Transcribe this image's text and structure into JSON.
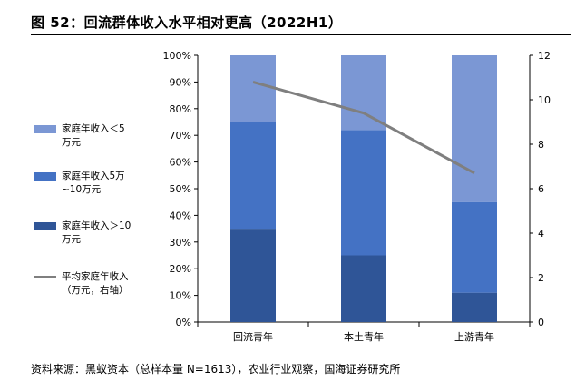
{
  "title": "图 52：回流群体收入水平相对更高（2022H1）",
  "source": "资料来源：黑蚁资本（总样本量 N=1613），农业行业观察，国海证券研究所",
  "chart_data": {
    "type": "bar",
    "stacked": true,
    "categories": [
      "回流青年",
      "本土青年",
      "上游青年"
    ],
    "series": [
      {
        "name": "家庭年收入＞10万元",
        "values": [
          35,
          25,
          11
        ],
        "color": "#2f5597"
      },
      {
        "name": "家庭年收入5万~10万元",
        "values": [
          40,
          47,
          34
        ],
        "color": "#4472c4"
      },
      {
        "name": "家庭年收入＜5万元",
        "values": [
          25,
          28,
          55
        ],
        "color": "#7b97d4"
      }
    ],
    "line_series": {
      "name": "平均家庭年收入（万元，右轴）",
      "values": [
        10.8,
        9.4,
        6.7
      ],
      "color": "#7f7f7f",
      "axis": "right"
    },
    "y_left": {
      "min": 0,
      "max": 100,
      "step": 10,
      "ticks": [
        "0%",
        "10%",
        "20%",
        "30%",
        "40%",
        "50%",
        "60%",
        "70%",
        "80%",
        "90%",
        "100%"
      ]
    },
    "y_right": {
      "min": 0,
      "max": 12,
      "step": 2,
      "ticks": [
        "0",
        "2",
        "4",
        "6",
        "8",
        "10",
        "12"
      ]
    },
    "legend": [
      {
        "label": "家庭年收入＜5\n万元",
        "kind": "bar",
        "color": "#7b97d4"
      },
      {
        "label": "家庭年收入5万\n~10万元",
        "kind": "bar",
        "color": "#4472c4"
      },
      {
        "label": "家庭年收入＞10\n万元",
        "kind": "bar",
        "color": "#2f5597"
      },
      {
        "label": "平均家庭年收入\n（万元，右轴）",
        "kind": "line",
        "color": "#7f7f7f"
      }
    ]
  }
}
